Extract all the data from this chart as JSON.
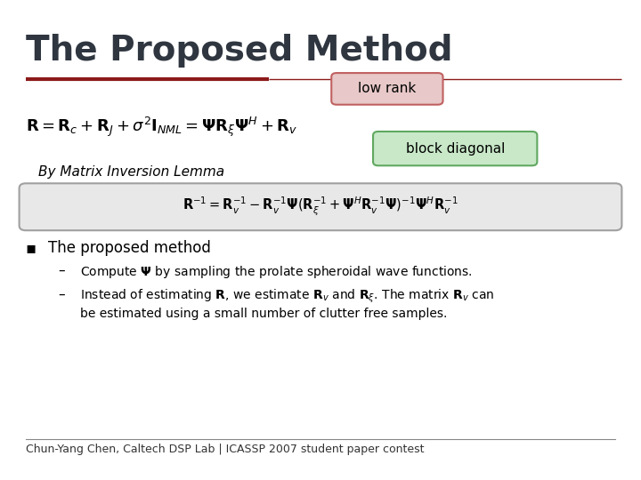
{
  "title": "The Proposed Method",
  "title_color": "#2F3640",
  "title_fontsize": 28,
  "bg_color": "#FFFFFF",
  "accent_line_color_thick": "#8B1A1A",
  "accent_line_color_thin": "#8B1A1A",
  "low_rank_label": "low rank",
  "low_rank_box_color": "#E8C8C8",
  "low_rank_border_color": "#C06060",
  "block_diag_label": "block diagonal",
  "block_diag_box_color": "#C8E8C8",
  "block_diag_border_color": "#60A860",
  "formula1": "$\\mathbf{R} = \\mathbf{R}_c + \\mathbf{R}_J + \\sigma^2\\mathbf{I}_{NML} = \\mathbf{\\Psi R}_{\\xi}\\mathbf{\\Psi}^H + \\mathbf{R}_v$",
  "by_matrix": "By Matrix Inversion Lemma",
  "formula2": "$\\mathbf{R}^{-1} = \\mathbf{R}_v^{-1} - \\mathbf{R}_v^{-1}\\mathbf{\\Psi}(\\mathbf{R}_{\\xi}^{-1} + \\mathbf{\\Psi}^H\\mathbf{R}_v^{-1}\\mathbf{\\Psi})^{-1}\\mathbf{\\Psi}^H\\mathbf{R}_v^{-1}$",
  "bullet_header": "The proposed method",
  "bullet1": "Compute $\\mathbf{\\Psi}$ by sampling the prolate spheroidal wave functions.",
  "bullet2a": "Instead of estimating $\\mathbf{R}$, we estimate $\\mathbf{R}_v$ and $\\mathbf{R}_{\\xi}$. The matrix $\\mathbf{R}_v$ can",
  "bullet2b": "be estimated using a small number of clutter free samples.",
  "footer": "Chun-Yang Chen, Caltech DSP Lab | ICASSP 2007 student paper contest",
  "footer_color": "#333333",
  "footer_fontsize": 9
}
